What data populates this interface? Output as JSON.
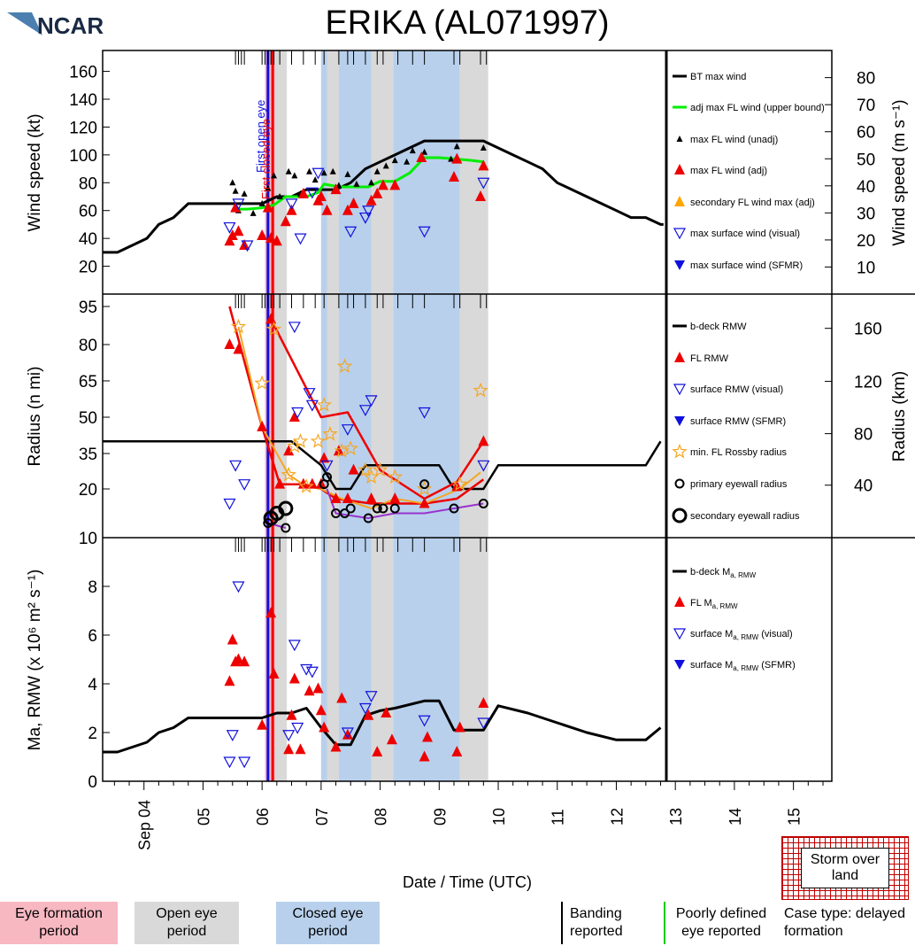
{
  "logo": {
    "text": "NCAR"
  },
  "title": "ERIKA (AL071997)",
  "xaxis": {
    "label": "Date / Time (UTC)",
    "ticks": [
      "Sep 04",
      "05",
      "06",
      "07",
      "08",
      "09",
      "10",
      "11",
      "12",
      "13",
      "14",
      "15"
    ],
    "tick_days": [
      4,
      5,
      6,
      7,
      8,
      9,
      10,
      11,
      12,
      13,
      14,
      15
    ],
    "range_days": [
      3.3,
      15.65
    ],
    "storm_end_day": 12.8
  },
  "periods": {
    "open_eye": [
      [
        6.12,
        6.42
      ],
      [
        7.0,
        7.3
      ],
      [
        7.85,
        8.22
      ],
      [
        9.35,
        9.83
      ]
    ],
    "closed_eye": [
      [
        7.0,
        7.1
      ],
      [
        7.3,
        7.85
      ],
      [
        8.22,
        9.35
      ]
    ],
    "eye_formation": [
      [
        6.05,
        6.22
      ]
    ],
    "first_open_eye_day": 6.1,
    "first_closed_eye_day": 6.18
  },
  "labels": {
    "first_open_eye": "First open eye",
    "first_closed_eye": "First closed eye"
  },
  "chart_data": [
    {
      "type": "line",
      "panel": "wind",
      "ylabel_left": "Wind speed (kt)",
      "ylabel_right": "Wind speed (m s⁻¹)",
      "ylim": [
        0,
        175
      ],
      "yticks_left": [
        20,
        40,
        60,
        80,
        100,
        120,
        140,
        160
      ],
      "yticks_right_ms": [
        10,
        20,
        30,
        40,
        50,
        60,
        70,
        80
      ],
      "legend": [
        "BT max wind",
        "adj max FL wind (upper bound)",
        "max FL wind (unadj)",
        "max FL wind (adj)",
        "secondary FL wind max (adj)",
        "max surface wind (visual)",
        "max surface wind (SFMR)"
      ],
      "series": [
        {
          "name": "BT max wind",
          "x": [
            3.3,
            3.55,
            3.8,
            4.05,
            4.25,
            4.5,
            4.75,
            5.0,
            5.25,
            5.5,
            5.75,
            6.0,
            6.25,
            6.5,
            6.75,
            7.0,
            7.25,
            7.5,
            7.75,
            8.0,
            8.25,
            8.5,
            8.75,
            9.0,
            9.25,
            9.5,
            9.75,
            10.0,
            10.25,
            10.5,
            10.75,
            11.0,
            11.25,
            11.5,
            11.75,
            12.0,
            12.25,
            12.5,
            12.75,
            12.8
          ],
          "values": [
            30,
            30,
            35,
            40,
            50,
            55,
            65,
            65,
            65,
            65,
            65,
            65,
            70,
            70,
            75,
            75,
            75,
            80,
            90,
            95,
            100,
            105,
            110,
            110,
            110,
            110,
            110,
            105,
            100,
            95,
            90,
            80,
            75,
            70,
            65,
            60,
            55,
            55,
            50,
            50
          ]
        },
        {
          "name": "adj max FL wind (upper bound)",
          "x": [
            5.55,
            5.75,
            6.0,
            6.2,
            6.4,
            6.55,
            6.75,
            6.95,
            7.05,
            7.3,
            7.55,
            7.8,
            8.0,
            8.25,
            8.5,
            8.75,
            9.0,
            9.3,
            9.55,
            9.75
          ],
          "values": [
            61,
            61,
            62,
            64,
            70,
            70,
            70,
            73,
            79,
            77,
            77,
            77,
            81,
            81,
            87,
            98,
            98,
            97,
            96,
            95
          ]
        },
        {
          "name": "max FL wind (unadj)",
          "x": [
            5.5,
            5.55,
            5.6,
            5.7,
            5.85,
            6.0,
            6.1,
            6.2,
            6.3,
            6.45,
            6.55,
            6.65,
            6.8,
            6.9,
            7.05,
            7.2,
            7.3,
            7.45,
            7.6,
            7.85,
            7.95,
            8.1,
            8.25,
            8.45,
            8.55,
            8.75,
            9.2,
            9.3,
            9.75
          ],
          "values": [
            80,
            74,
            60,
            72,
            58,
            65,
            76,
            85,
            70,
            88,
            85,
            72,
            88,
            82,
            87,
            88,
            78,
            86,
            79,
            80,
            88,
            92,
            96,
            95,
            103,
            102,
            97,
            106,
            105
          ]
        },
        {
          "name": "max FL wind (adj)",
          "x": [
            5.45,
            5.5,
            5.55,
            5.6,
            5.7,
            6.0,
            6.1,
            6.15,
            6.25,
            6.4,
            6.5,
            6.7,
            6.95,
            7.0,
            7.1,
            7.25,
            7.45,
            7.55,
            7.85,
            7.95,
            8.05,
            8.25,
            8.7,
            9.25,
            9.3,
            9.7,
            9.75
          ],
          "values": [
            38,
            42,
            62,
            45,
            35,
            42,
            62,
            40,
            38,
            52,
            60,
            72,
            67,
            70,
            60,
            75,
            60,
            65,
            67,
            72,
            78,
            78,
            98,
            84,
            97,
            70,
            92
          ]
        },
        {
          "name": "max surface wind (visual)",
          "x": [
            5.45,
            5.6,
            5.75,
            6.5,
            6.65,
            6.85,
            6.95,
            7.5,
            7.75,
            7.8,
            8.75,
            9.75
          ],
          "values": [
            48,
            65,
            35,
            65,
            40,
            73,
            87,
            45,
            55,
            60,
            45,
            80
          ]
        }
      ]
    },
    {
      "type": "line",
      "panel": "radius",
      "ylabel_left": "Radius (n mi)",
      "ylabel_right": "Radius (km)",
      "yticks_left": [
        10,
        20,
        35,
        50,
        65,
        80,
        95
      ],
      "yticks_right_km": [
        40,
        80,
        120,
        160
      ],
      "legend": [
        "b-deck RMW",
        "FL RMW",
        "surface RMW (visual)",
        "surface RMW (SFMR)",
        "min. FL Rossby radius",
        "primary eyewall radius",
        "secondary eyewall radius"
      ],
      "series": [
        {
          "name": "b-deck RMW",
          "x": [
            3.3,
            6.5,
            7.0,
            7.25,
            7.5,
            7.75,
            8.0,
            8.25,
            8.5,
            9.0,
            9.25,
            9.5,
            9.75,
            10.0,
            12.5,
            12.75
          ],
          "values": [
            40,
            40,
            30,
            20,
            20,
            30,
            30,
            30,
            30,
            30,
            20,
            20,
            20,
            30,
            30,
            40
          ]
        },
        {
          "name": "FL RMW",
          "x": [
            5.45,
            5.6,
            6.0,
            6.15,
            6.3,
            6.45,
            6.55,
            6.7,
            6.85,
            7.0,
            7.05,
            7.25,
            7.3,
            7.45,
            7.55,
            7.85,
            8.25,
            8.75,
            9.3,
            9.75
          ],
          "values": [
            80,
            78,
            46,
            90,
            22,
            36,
            50,
            22,
            22,
            22,
            33,
            18,
            36,
            18,
            28,
            18,
            18,
            17,
            21,
            40
          ]
        },
        {
          "name": "surface RMW (visual)",
          "x": [
            5.45,
            5.55,
            5.7,
            6.55,
            6.6,
            6.8,
            6.85,
            7.1,
            7.45,
            7.75,
            7.85,
            8.75,
            9.75
          ],
          "values": [
            17,
            30,
            22,
            87,
            52,
            60,
            55,
            30,
            45,
            53,
            57,
            52,
            30
          ]
        },
        {
          "name": "min. FL Rossby radius",
          "x": [
            5.6,
            6.0,
            6.2,
            6.45,
            6.55,
            6.65,
            6.75,
            6.95,
            7.05,
            7.15,
            7.35,
            7.4,
            7.5,
            7.75,
            7.85,
            8.0,
            8.25,
            8.75,
            9.35,
            9.7
          ],
          "values": [
            87,
            64,
            86,
            26,
            38,
            40,
            21,
            40,
            55,
            43,
            36,
            71,
            37,
            28,
            25,
            28,
            25,
            20,
            22,
            61
          ]
        },
        {
          "name": "primary eyewall radius",
          "x": [
            6.1,
            6.4,
            7.05,
            7.1,
            7.25,
            7.4,
            7.5,
            7.8,
            7.95,
            8.05,
            8.25,
            8.75,
            9.25,
            9.75
          ],
          "values": [
            13,
            12,
            22,
            25,
            15,
            15,
            16,
            14,
            16,
            16,
            16,
            22,
            16,
            17
          ]
        },
        {
          "name": "secondary eyewall radius",
          "x": [
            6.15,
            6.25,
            6.4
          ],
          "values": [
            14,
            15,
            16
          ]
        }
      ]
    },
    {
      "type": "line",
      "panel": "angular_momentum",
      "ylabel_left": "Ma, RMW (x 10⁶ m² s⁻¹)",
      "ylim": [
        0,
        10
      ],
      "yticks_left": [
        0,
        2,
        4,
        6,
        8
      ],
      "legend": [
        "b-deck Ma, RMW",
        "FL Ma, RMW",
        "surface Ma, RMW (visual)",
        "surface Ma, RMW (SFMR)"
      ],
      "series": [
        {
          "name": "b-deck Ma, RMW",
          "x": [
            3.3,
            3.55,
            3.8,
            4.05,
            4.25,
            4.5,
            4.75,
            6.0,
            6.25,
            6.5,
            6.75,
            7.0,
            7.25,
            7.5,
            7.75,
            8.0,
            8.25,
            8.75,
            9.0,
            9.25,
            9.5,
            9.75,
            10.0,
            10.5,
            11.0,
            11.5,
            12.0,
            12.25,
            12.5,
            12.75
          ],
          "values": [
            1.2,
            1.2,
            1.4,
            1.6,
            2.0,
            2.2,
            2.6,
            2.6,
            2.8,
            2.8,
            3.0,
            2.2,
            1.5,
            1.5,
            2.7,
            2.9,
            3.0,
            3.3,
            3.3,
            2.1,
            2.1,
            2.1,
            3.1,
            2.8,
            2.4,
            2.0,
            1.7,
            1.7,
            1.7,
            2.2
          ]
        },
        {
          "name": "FL Ma, RMW",
          "x": [
            5.45,
            5.5,
            5.55,
            5.6,
            5.7,
            6.0,
            6.15,
            6.2,
            6.45,
            6.5,
            6.55,
            6.65,
            6.8,
            6.95,
            7.0,
            7.05,
            7.25,
            7.35,
            7.45,
            7.8,
            7.95,
            8.1,
            8.2,
            8.75,
            8.8,
            9.3,
            9.35,
            9.75
          ],
          "values": [
            4.1,
            5.8,
            4.9,
            5.0,
            4.9,
            2.3,
            6.9,
            4.4,
            1.3,
            2.7,
            4.2,
            1.3,
            3.7,
            3.8,
            2.9,
            2.2,
            1.4,
            3.4,
            1.9,
            2.7,
            1.2,
            2.8,
            1.7,
            1.0,
            1.8,
            1.2,
            2.2,
            3.2
          ]
        },
        {
          "name": "surface Ma, RMW (visual)",
          "x": [
            5.45,
            5.5,
            5.6,
            5.7,
            6.45,
            6.55,
            6.6,
            6.75,
            6.85,
            7.45,
            7.75,
            7.85,
            8.75,
            9.75
          ],
          "values": [
            0.8,
            1.9,
            8.0,
            0.8,
            1.9,
            5.6,
            2.2,
            4.6,
            4.5,
            2.0,
            3.0,
            3.5,
            2.5,
            2.4
          ]
        }
      ]
    }
  ],
  "right_legend": {
    "wind": [
      "BT max wind",
      "adj max FL wind (upper bound)",
      "max FL wind (unadj)",
      "max FL wind (adj)",
      "secondary FL wind max (adj)",
      "max surface wind (visual)",
      "max surface wind (SFMR)"
    ],
    "radius": [
      "b-deck RMW",
      "FL RMW",
      "surface RMW (visual)",
      "surface RMW (SFMR)",
      "min. FL Rossby radius",
      "primary eyewall radius",
      "secondary eyewall radius"
    ],
    "ma": [
      "b-deck M",
      "FL M",
      "surface M",
      "surface M"
    ],
    "ma_suffix": [
      "",
      "",
      " (visual)",
      " (SFMR)"
    ],
    "ma_sub": "a, RMW"
  },
  "bottom_legend": {
    "eye_formation": "Eye formation period",
    "open_eye": "Open eye period",
    "closed_eye": "Closed eye period",
    "banding": "Banding reported",
    "poorly_defined": "Poorly defined eye reported",
    "case_type": "Case type: delayed formation",
    "land": "Storm over land"
  },
  "colors": {
    "open_eye": "#d9d9d9",
    "closed_eye": "#b8d0ec",
    "eye_formation": "#f7b8c2",
    "bt": "#000000",
    "adj_fl": "#00ee00",
    "fl_adj": "#ee0000",
    "secondary": "#ffa500",
    "surface": "#1010dd",
    "rossby": "#f5a623",
    "purple": "#9933cc"
  }
}
